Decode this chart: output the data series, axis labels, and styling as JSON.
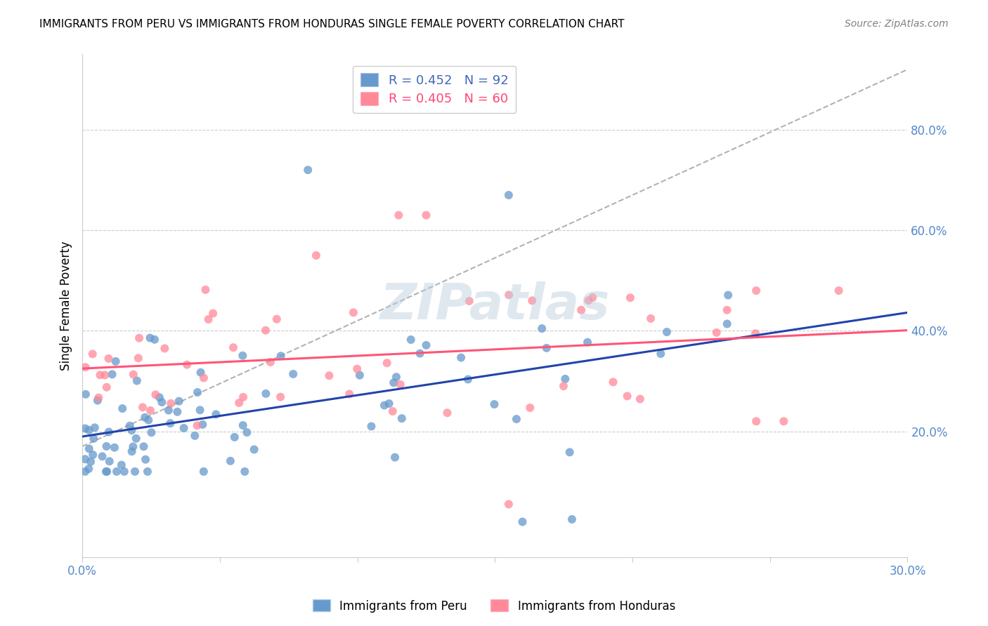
{
  "title": "IMMIGRANTS FROM PERU VS IMMIGRANTS FROM HONDURAS SINGLE FEMALE POVERTY CORRELATION CHART",
  "source": "Source: ZipAtlas.com",
  "ylabel": "Single Female Poverty",
  "right_yticks": [
    "20.0%",
    "40.0%",
    "60.0%",
    "80.0%"
  ],
  "right_ytick_vals": [
    0.2,
    0.4,
    0.6,
    0.8
  ],
  "peru_color": "#6699CC",
  "honduras_color": "#FF8899",
  "peru_line_color": "#2244AA",
  "honduras_line_color": "#FF5577",
  "dashed_line_color": "#AAAAAA",
  "watermark": "ZIPatlas",
  "xlim": [
    0.0,
    0.3
  ],
  "ylim": [
    -0.05,
    0.95
  ]
}
